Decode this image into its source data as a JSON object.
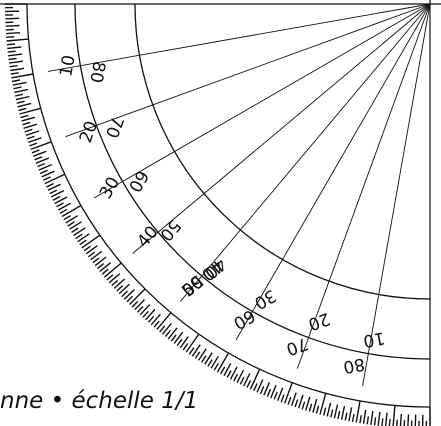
{
  "caption": "nne • échelle 1/1",
  "outer_labels": [
    "10",
    "20",
    "30",
    "40",
    "50"
  ],
  "mid_labels": [
    "80",
    "70",
    "60",
    "50",
    "40"
  ],
  "inner_labels": [
    "40",
    "30",
    "20",
    "10"
  ],
  "lower_labels": [
    "50",
    "60",
    "70",
    "80"
  ],
  "colors": {
    "ink": "#111111",
    "paper": "#ffffff"
  }
}
